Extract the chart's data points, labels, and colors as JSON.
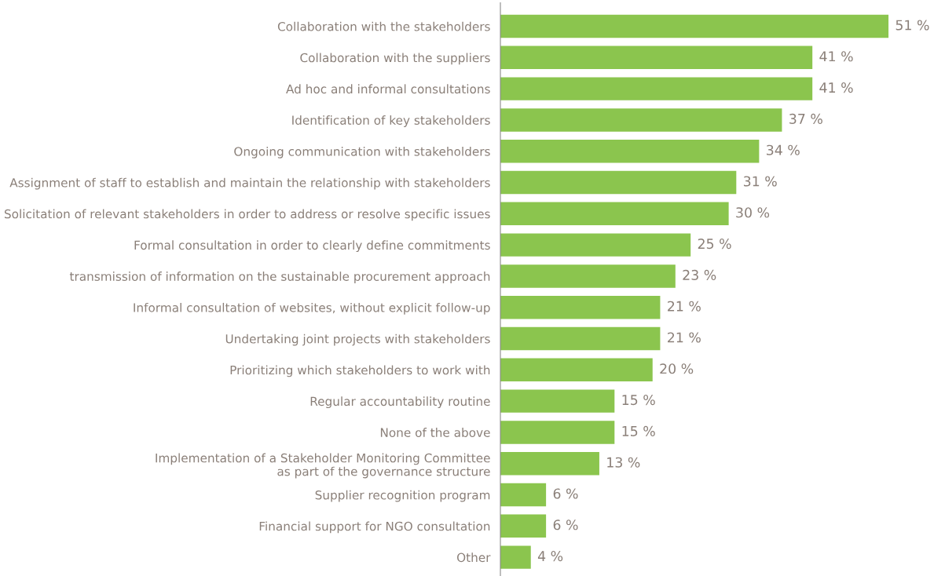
{
  "chart_data": {
    "type": "bar",
    "orientation": "horizontal",
    "categories": [
      "Collaboration with the stakeholders",
      "Collaboration with the suppliers",
      "Ad hoc and informal consultations",
      "Identification of key stakeholders",
      "Ongoing communication with stakeholders",
      "Assignment of staff to establish and maintain the relationship with stakeholders",
      "Solicitation of relevant stakeholders in order to address or resolve specific issues",
      "Formal consultation in order to clearly define commitments",
      "transmission of information on the sustainable procurement approach",
      "Informal consultation of websites, without explicit follow-up",
      "Undertaking joint projects with stakeholders",
      "Prioritizing which stakeholders to work with",
      "Regular accountability routine",
      "None of the above",
      "Implementation of a Stakeholder Monitoring Committee\nas part of the governance structure",
      "Supplier recognition program",
      "Financial support for NGO consultation",
      "Other"
    ],
    "values": [
      51,
      41,
      41,
      37,
      34,
      31,
      30,
      25,
      23,
      21,
      21,
      20,
      15,
      15,
      13,
      6,
      6,
      4
    ],
    "value_labels": [
      "51 %",
      "41 %",
      "41 %",
      "37 %",
      "34 %",
      "31 %",
      "30 %",
      "25 %",
      "23 %",
      "21 %",
      "21 %",
      "20 %",
      "15 %",
      "15 %",
      "13 %",
      "6 %",
      "6 %",
      "4 %"
    ],
    "color": "#8bc54e",
    "grid": false,
    "legend": false
  }
}
